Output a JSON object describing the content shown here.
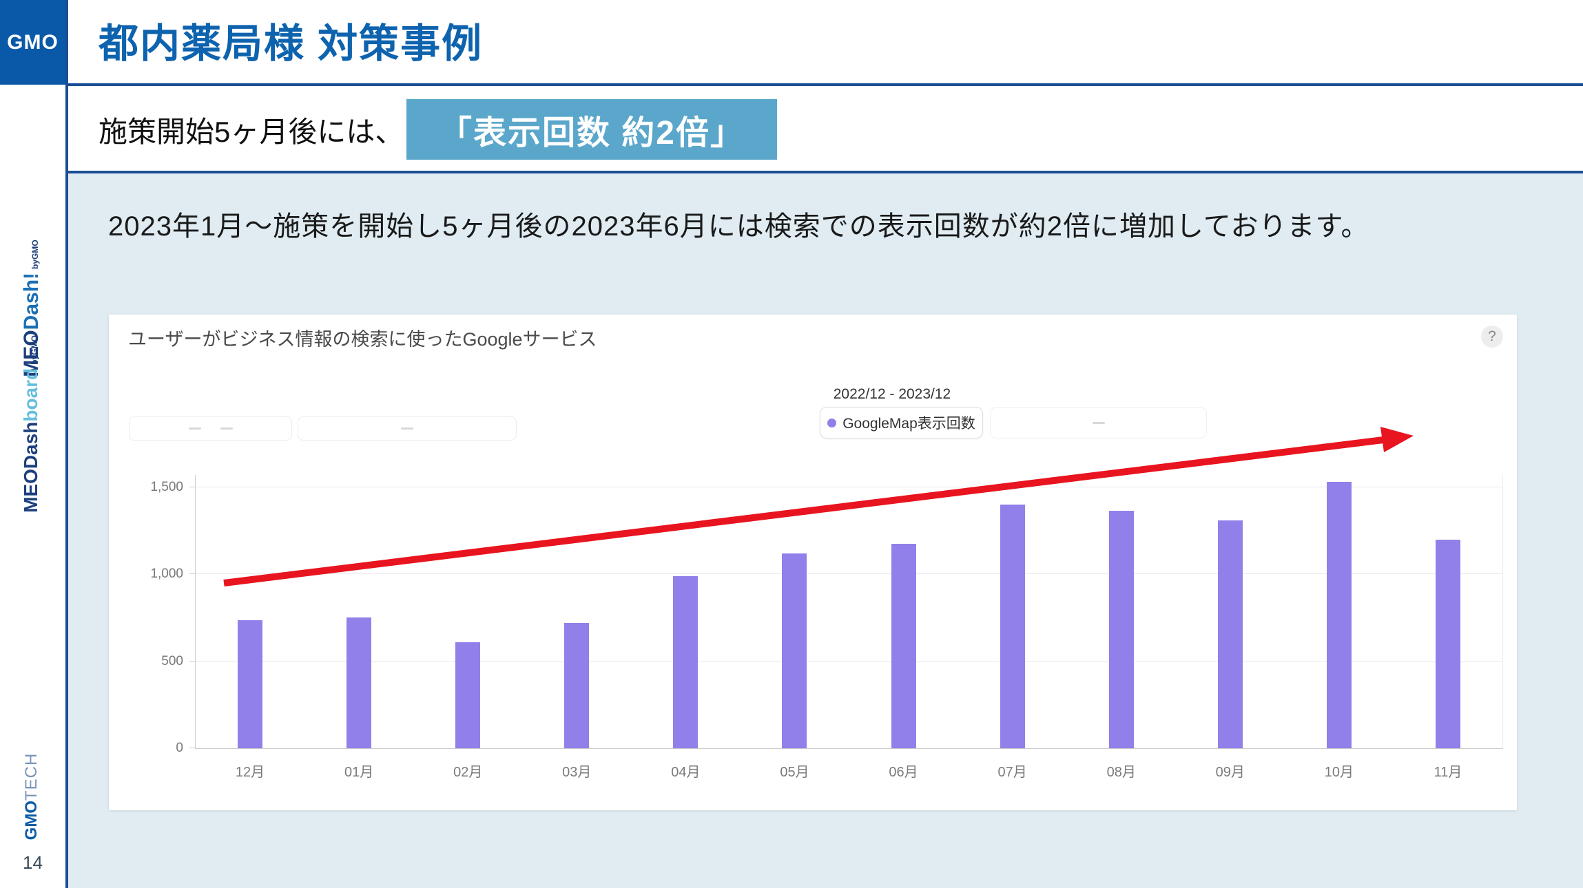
{
  "sidebar": {
    "gmo_logo": "GMO",
    "logo_meodash": {
      "prefix": "MEO",
      "suffix": "Dash!",
      "by": "byGMO"
    },
    "logo_meodashboard": {
      "prefix": "MEODash",
      "suffix": "board",
      "by": "byGMO"
    },
    "logo_gmotech": {
      "prefix": "GMO",
      "suffix": "TECH"
    },
    "page_number": "14"
  },
  "header": {
    "title": "都内薬局様 対策事例"
  },
  "subtitle": {
    "lead": "施策開始5ヶ月後には、",
    "highlight": "「表示回数 約2倍」",
    "highlight_bg": "#5BA7CB"
  },
  "body": {
    "description": "2023年1月〜施策を開始し5ヶ月後の2023年6月には検索での表示回数が約2倍に増加しております。"
  },
  "chart_panel": {
    "title": "ユーザーがビジネス情報の検索に使ったGoogleサービス",
    "help_icon": "?",
    "date_range": "2022/12 - 2023/12",
    "legend_label": "GoogleMap表示回数"
  },
  "chart_data": {
    "type": "bar",
    "title": "ユーザーがビジネス情報の検索に使ったGoogleサービス",
    "series_name": "GoogleMap表示回数",
    "categories": [
      "12月",
      "01月",
      "02月",
      "03月",
      "04月",
      "05月",
      "06月",
      "07月",
      "08月",
      "09月",
      "10月",
      "11月"
    ],
    "values": [
      735,
      750,
      610,
      720,
      990,
      1120,
      1175,
      1400,
      1365,
      1310,
      1530,
      1200
    ],
    "yticks": [
      0,
      500,
      1000,
      1500
    ],
    "ytick_labels": [
      "0",
      "500",
      "1,000",
      "1,500"
    ],
    "ylim": [
      0,
      1500
    ],
    "xlabel": "",
    "ylabel": "",
    "grid": "horizontal",
    "legend_position": "top-right",
    "bar_color": "#9180EA",
    "annotation": {
      "type": "arrow",
      "meaning": "upward trend of impressions",
      "color": "#E8141F",
      "from": {
        "x": "12月",
        "value": 950
      },
      "to": {
        "x": "11月",
        "value": 1795
      }
    }
  }
}
